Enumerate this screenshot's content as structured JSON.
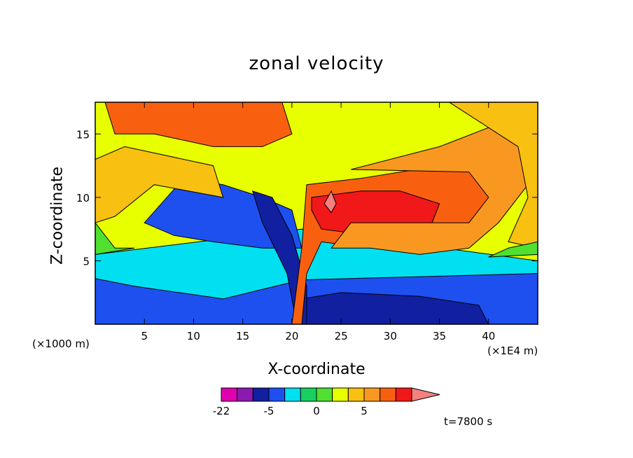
{
  "chart_data": {
    "type": "heatmap",
    "title": "zonal velocity",
    "xlabel": "X-coordinate",
    "ylabel": "Z-coordinate",
    "x_unit": "(×1000 m)",
    "x_scale": "(×1E4 m)",
    "xlim": [
      0,
      45
    ],
    "ylim": [
      0,
      17.5
    ],
    "x_ticks": [
      5,
      10,
      15,
      20,
      25,
      30,
      35,
      40
    ],
    "y_ticks": [
      5,
      10,
      15
    ],
    "time_label": "t=7800 s",
    "colorbar": {
      "levels": [
        -22,
        -17,
        -10,
        -5,
        -3,
        -1,
        0,
        1,
        3,
        5,
        10,
        15
      ],
      "tick_labels": [
        {
          "value": -22,
          "text": "-22"
        },
        {
          "value": -5,
          "text": "-5"
        },
        {
          "value": 0,
          "text": "0"
        },
        {
          "value": 5,
          "text": "5"
        }
      ],
      "colors": [
        "#e000b0",
        "#8a1ab0",
        "#1020a0",
        "#1e50f0",
        "#00e0f0",
        "#18d060",
        "#50e030",
        "#e8ff00",
        "#f8c010",
        "#f89820",
        "#f86010",
        "#f01818",
        "#f48080"
      ]
    },
    "regions": [
      {
        "name": "lower-blue-layer",
        "level": -5,
        "points": [
          [
            0,
            0
          ],
          [
            45,
            0
          ],
          [
            45,
            5
          ],
          [
            21,
            7.5
          ],
          [
            0,
            5.5
          ]
        ]
      },
      {
        "name": "lower-navy-layer",
        "level": -10,
        "points": [
          [
            0,
            0
          ],
          [
            45,
            0
          ],
          [
            45,
            4
          ],
          [
            21,
            3.5
          ],
          [
            13,
            2
          ],
          [
            4,
            3
          ],
          [
            0,
            3.6
          ]
        ]
      },
      {
        "name": "upper-navy-core",
        "level": -10,
        "points": [
          [
            5,
            8
          ],
          [
            9,
            11.5
          ],
          [
            13,
            11
          ],
          [
            17,
            10
          ],
          [
            20,
            9
          ],
          [
            21,
            6
          ],
          [
            17,
            6
          ],
          [
            12,
            6.5
          ],
          [
            8,
            7
          ]
        ]
      },
      {
        "name": "surface-purple",
        "level": -17,
        "points": [
          [
            21,
            0
          ],
          [
            40,
            0
          ],
          [
            39,
            1.5
          ],
          [
            33,
            2.2
          ],
          [
            25,
            2.5
          ],
          [
            21,
            2
          ]
        ]
      },
      {
        "name": "descent-purple",
        "level": -17,
        "points": [
          [
            16,
            10.5
          ],
          [
            18,
            10
          ],
          [
            20,
            7
          ],
          [
            21.5,
            3
          ],
          [
            21.5,
            0
          ],
          [
            20.5,
            0
          ],
          [
            19.5,
            4
          ],
          [
            17,
            8
          ]
        ]
      },
      {
        "name": "upper-orange-wedge",
        "level": 5,
        "points": [
          [
            20,
            0
          ],
          [
            21,
            6
          ],
          [
            21.5,
            11
          ],
          [
            27,
            11.5
          ],
          [
            35,
            12.5
          ],
          [
            40,
            12
          ],
          [
            41,
            9
          ],
          [
            34,
            6.5
          ],
          [
            28,
            6
          ],
          [
            23,
            6.5
          ],
          [
            21.5,
            4
          ],
          [
            21,
            0
          ]
        ]
      },
      {
        "name": "upper-orange-core",
        "level": 10,
        "points": [
          [
            22,
            10
          ],
          [
            27,
            10.5
          ],
          [
            31,
            10.5
          ],
          [
            35,
            9.5
          ],
          [
            34,
            7.5
          ],
          [
            28,
            7
          ],
          [
            23,
            7.5
          ],
          [
            22,
            9
          ]
        ]
      },
      {
        "name": "upper-red-spot",
        "level": 15,
        "points": [
          [
            23.3,
            9.5
          ],
          [
            24,
            10.5
          ],
          [
            24.5,
            9.5
          ],
          [
            24,
            8.8
          ]
        ]
      },
      {
        "name": "upper-yellow-band",
        "level": 3,
        "points": [
          [
            26,
            12.2
          ],
          [
            35,
            14
          ],
          [
            40,
            15.5
          ],
          [
            44,
            14
          ],
          [
            44,
            11
          ],
          [
            41,
            8
          ],
          [
            38,
            6
          ],
          [
            33,
            5.5
          ],
          [
            28,
            6
          ],
          [
            24,
            6
          ],
          [
            26,
            8
          ],
          [
            38,
            8
          ],
          [
            40,
            10
          ],
          [
            38,
            12
          ]
        ]
      },
      {
        "name": "top-left-orange",
        "level": 5,
        "points": [
          [
            1,
            17.5
          ],
          [
            19,
            17.5
          ],
          [
            20,
            15
          ],
          [
            17,
            14
          ],
          [
            12,
            14
          ],
          [
            6,
            15
          ],
          [
            2,
            15
          ]
        ]
      },
      {
        "name": "right-green",
        "level": 1,
        "points": [
          [
            36,
            17.5
          ],
          [
            45,
            17.5
          ],
          [
            45,
            6
          ],
          [
            42,
            6.5
          ],
          [
            44,
            10
          ],
          [
            43,
            14
          ],
          [
            39,
            16
          ]
        ]
      },
      {
        "name": "right-cyan",
        "level": -1,
        "points": [
          [
            42,
            6
          ],
          [
            45,
            6.5
          ],
          [
            45,
            5.5
          ],
          [
            40,
            5.3
          ]
        ]
      },
      {
        "name": "left-cyan",
        "level": -1,
        "points": [
          [
            0,
            5.5
          ],
          [
            0,
            8
          ],
          [
            2,
            6
          ],
          [
            4,
            6
          ]
        ]
      },
      {
        "name": "left-green",
        "level": 1,
        "points": [
          [
            0,
            8
          ],
          [
            0,
            13
          ],
          [
            3,
            14
          ],
          [
            12,
            12.5
          ],
          [
            13,
            10
          ],
          [
            6,
            11
          ],
          [
            2,
            8.5
          ]
        ]
      }
    ]
  }
}
